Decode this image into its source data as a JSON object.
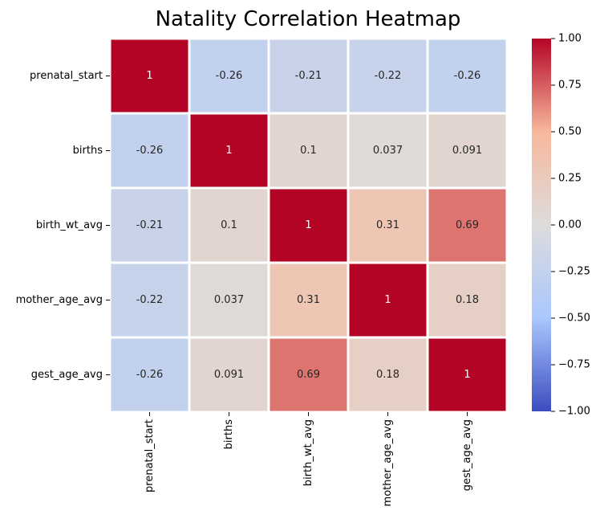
{
  "chart_data": {
    "type": "heatmap",
    "title": "Natality Correlation Heatmap",
    "xlabel": "",
    "ylabel": "",
    "x_categories": [
      "prenatal_start",
      "births",
      "birth_wt_avg",
      "mother_age_avg",
      "gest_age_avg"
    ],
    "y_categories": [
      "prenatal_start",
      "births",
      "birth_wt_avg",
      "mother_age_avg",
      "gest_age_avg"
    ],
    "values": [
      [
        1,
        -0.26,
        -0.21,
        -0.22,
        -0.26
      ],
      [
        -0.26,
        1,
        0.1,
        0.037,
        0.091
      ],
      [
        -0.21,
        0.1,
        1,
        0.31,
        0.69
      ],
      [
        -0.22,
        0.037,
        0.31,
        1,
        0.18
      ],
      [
        -0.26,
        0.091,
        0.69,
        0.18,
        1
      ]
    ],
    "annotations": [
      [
        "1",
        "-0.26",
        "-0.21",
        "-0.22",
        "-0.26"
      ],
      [
        "-0.26",
        "1",
        "0.1",
        "0.037",
        "0.091"
      ],
      [
        "-0.21",
        "0.1",
        "1",
        "0.31",
        "0.69"
      ],
      [
        "-0.22",
        "0.037",
        "0.31",
        "1",
        "0.18"
      ],
      [
        "-0.26",
        "0.091",
        "0.69",
        "0.18",
        "1"
      ]
    ],
    "colormap": "coolwarm",
    "colormap_stops": [
      "#3b4cc0",
      "#aac7fd",
      "#dddcdc",
      "#f7b89c",
      "#b40426"
    ],
    "vmin": -1,
    "vmax": 1,
    "colorbar_ticks": [
      1.0,
      0.75,
      0.5,
      0.25,
      0.0,
      -0.25,
      -0.5,
      -0.75,
      -1.0
    ],
    "colorbar_tick_labels": [
      "1.00",
      "0.75",
      "0.50",
      "0.25",
      "0.00",
      "−0.25",
      "−0.50",
      "−0.75",
      "−1.00"
    ],
    "grid_line_color": "#ffffff",
    "grid": false,
    "legend": "colorbar right"
  }
}
